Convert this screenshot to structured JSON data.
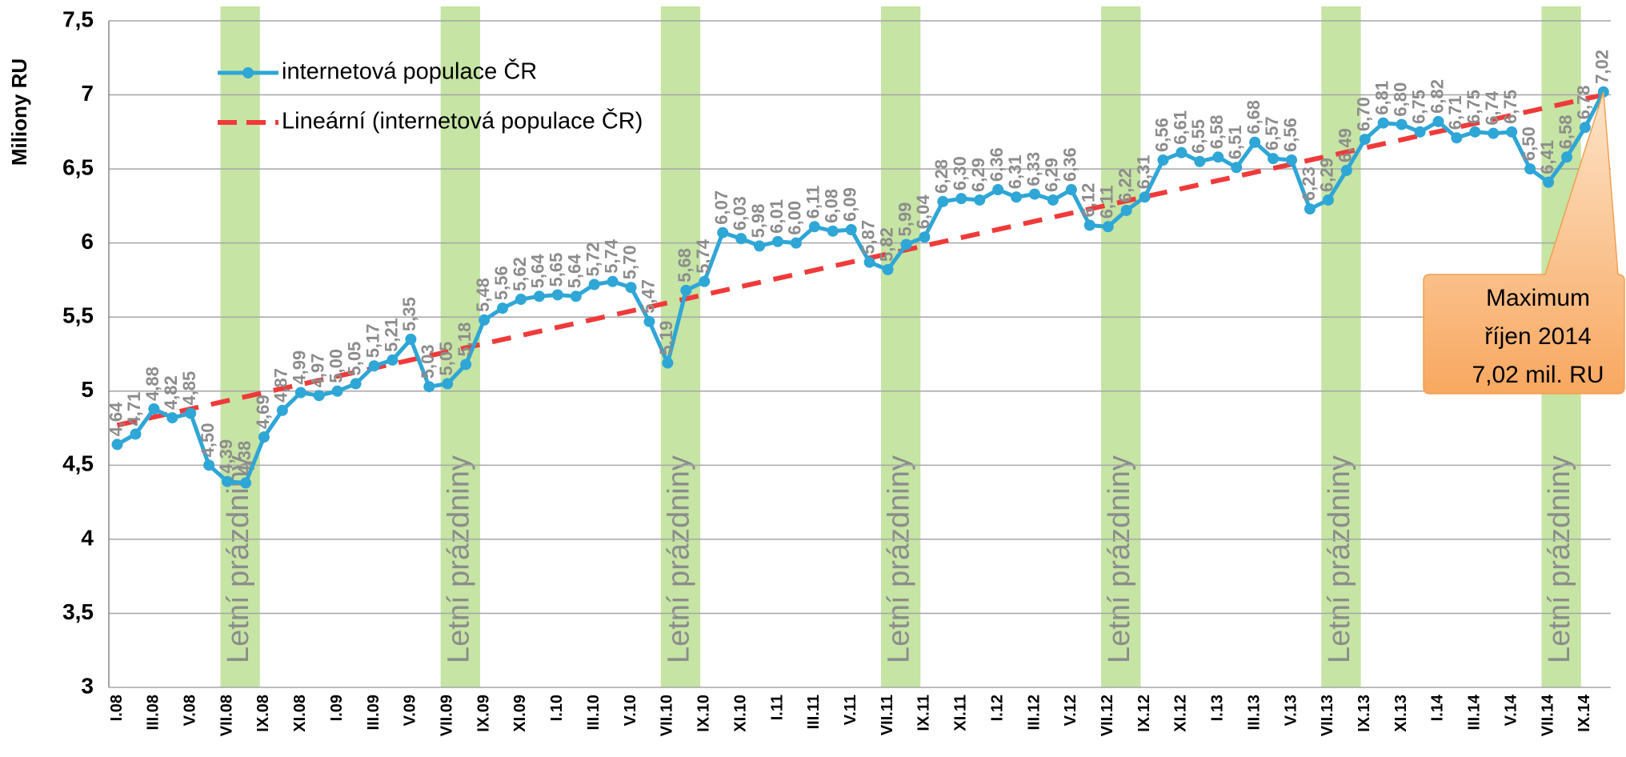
{
  "chart_data": {
    "type": "line",
    "y_axis_label": "Miliony RU",
    "categories": [
      "I.08",
      null,
      "III.08",
      null,
      "V.08",
      null,
      "VII.08",
      null,
      "IX.08",
      null,
      "XI.08",
      null,
      "I.09",
      null,
      "III.09",
      null,
      "V.09",
      null,
      "VII.09",
      null,
      "IX.09",
      null,
      "XI.09",
      null,
      "I.10",
      null,
      "III.10",
      null,
      "V.10",
      null,
      "VII.10",
      null,
      "IX.10",
      null,
      "XI.10",
      null,
      "I.11",
      null,
      "III.11",
      null,
      "V.11",
      null,
      "VII.11",
      null,
      "IX.11",
      null,
      "XI.11",
      null,
      "I.12",
      null,
      "III.12",
      null,
      "V.12",
      null,
      "VII.12",
      null,
      "IX.12",
      null,
      "XI.12",
      null,
      "I.13",
      null,
      "III.13",
      null,
      "V.13",
      null,
      "VII.13",
      null,
      "IX.13",
      null,
      "XI.13",
      null,
      "I.14",
      null,
      "III.14",
      null,
      "V.14",
      null,
      "VII.14",
      null,
      "IX.14",
      null
    ],
    "series": [
      {
        "name": "internetová populace ČR",
        "color": "#2ea6d6",
        "values": [
          4.64,
          4.71,
          4.88,
          4.82,
          4.85,
          4.5,
          4.39,
          4.38,
          4.69,
          4.87,
          4.99,
          4.97,
          5.0,
          5.05,
          5.17,
          5.21,
          5.35,
          5.03,
          5.05,
          5.18,
          5.48,
          5.56,
          5.62,
          5.64,
          5.65,
          5.64,
          5.72,
          5.74,
          5.7,
          5.47,
          5.19,
          5.68,
          5.74,
          6.07,
          6.03,
          5.98,
          6.01,
          6.0,
          6.11,
          6.08,
          6.09,
          5.87,
          5.82,
          5.99,
          6.04,
          6.28,
          6.3,
          6.29,
          6.36,
          6.31,
          6.33,
          6.29,
          6.36,
          6.12,
          6.11,
          6.22,
          6.31,
          6.56,
          6.61,
          6.55,
          6.58,
          6.51,
          6.68,
          6.57,
          6.56,
          6.23,
          6.29,
          6.49,
          6.7,
          6.81,
          6.8,
          6.75,
          6.82,
          6.71,
          6.75,
          6.74,
          6.75,
          6.5,
          6.41,
          6.58,
          6.78,
          7.02
        ],
        "value_labels": [
          "4,64",
          "4,71",
          "4,88",
          "4,82",
          "4,85",
          "4,50",
          "4,39",
          "4,38",
          "4,69",
          "4,87",
          "4,99",
          "4,97",
          "5,00",
          "5,05",
          "5,17",
          "5,21",
          "5,35",
          "5,03",
          "5,05",
          "5,18",
          "5,48",
          "5,56",
          "5,62",
          "5,64",
          "5,65",
          "5,64",
          "5,72",
          "5,74",
          "5,70",
          "5,47",
          "5,19",
          "5,68",
          "5,74",
          "6,07",
          "6,03",
          "5,98",
          "6,01",
          "6,00",
          "6,11",
          "6,08",
          "6,09",
          "5,87",
          "5,82",
          "5,99",
          "6,04",
          "6,28",
          "6,30",
          "6,29",
          "6,36",
          "6,31",
          "6,33",
          "6,29",
          "6,36",
          "6,12",
          "6,11",
          "6,22",
          "6,31",
          "6,56",
          "6,61",
          "6,55",
          "6,58",
          "6,51",
          "6,68",
          "6,57",
          "6,56",
          "6,23",
          "6,29",
          "6,49",
          "6,70",
          "6,81",
          "6,80",
          "6,75",
          "6,82",
          "6,71",
          "6,75",
          "6,74",
          "6,75",
          "6,50",
          "6,41",
          "6,58",
          "6,78",
          "7,02"
        ]
      }
    ],
    "trend": {
      "name": "Lineární (internetová populace ČR)",
      "color": "#f03a3a",
      "values": [
        4.77,
        7.0
      ]
    },
    "bands": [
      {
        "label": "Letní prázdniny",
        "from": 6,
        "to": 7
      },
      {
        "label": "Letní prázdniny",
        "from": 18,
        "to": 19
      },
      {
        "label": "Letní prázdniny",
        "from": 30,
        "to": 31
      },
      {
        "label": "Letní prázdniny",
        "from": 42,
        "to": 43
      },
      {
        "label": "Letní prázdniny",
        "from": 54,
        "to": 55
      },
      {
        "label": "Letní prázdniny",
        "from": 66,
        "to": 67
      },
      {
        "label": "Letní prázdniny",
        "from": 78,
        "to": 79
      }
    ],
    "band_color": "#c6e4a4",
    "annotation": {
      "lines": [
        "Maximum",
        "říjen 2014",
        "7,02 mil. RU"
      ],
      "point": 81
    },
    "ylim": [
      3,
      7.5
    ],
    "yticks": [
      3,
      {
        "value": 3.5,
        "label": "3,5"
      },
      4,
      {
        "value": 4.5,
        "label": "4,5"
      },
      5,
      {
        "value": 5.5,
        "label": "5,5"
      },
      6,
      {
        "value": 6.5,
        "label": "6,5"
      },
      7,
      {
        "value": 7.5,
        "label": "7,5"
      }
    ],
    "grid": true,
    "legend": "top-left"
  }
}
